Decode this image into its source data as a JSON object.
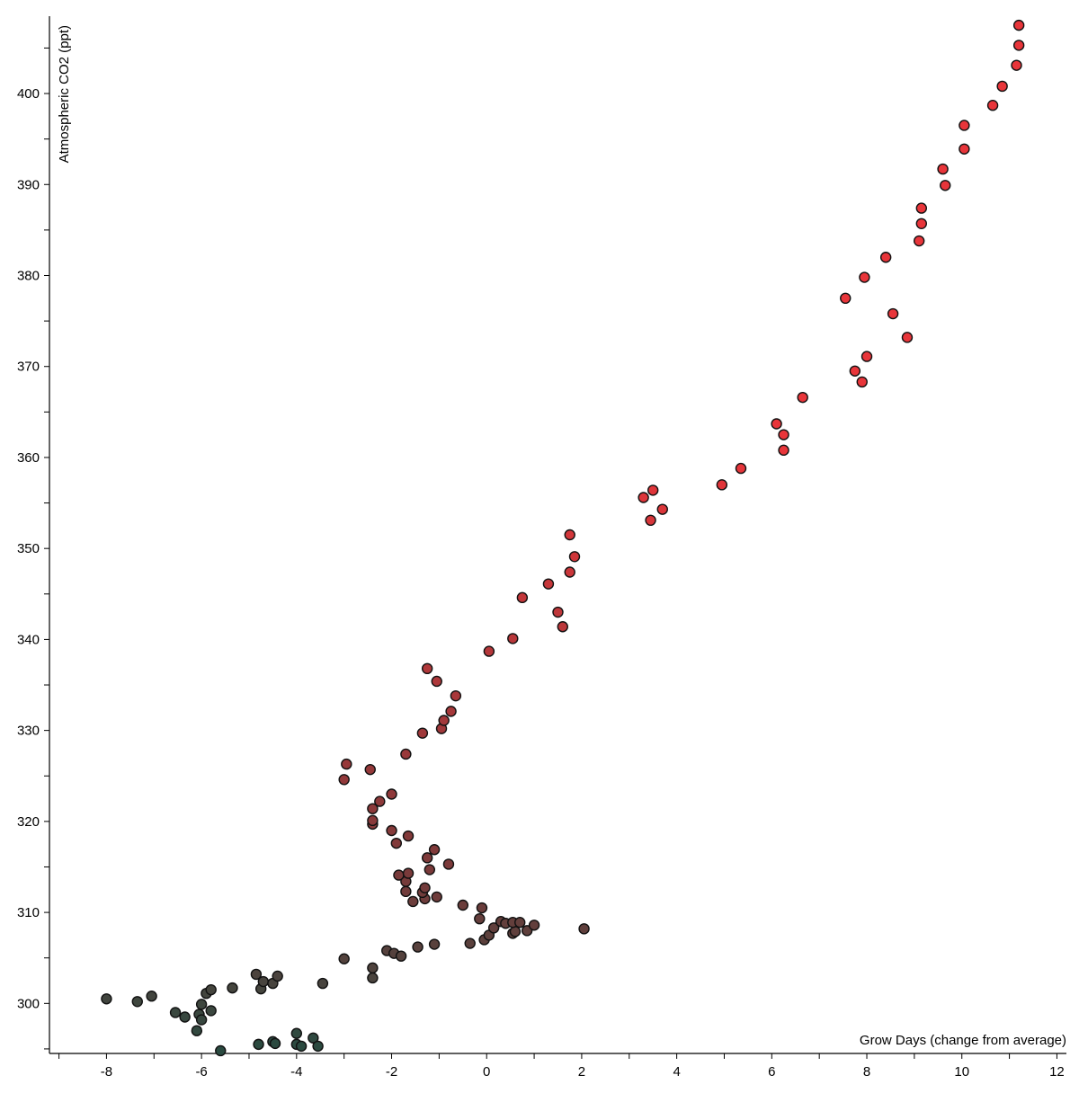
{
  "chart_data": {
    "type": "scatter",
    "xlabel": "Grow Days (change from average)",
    "ylabel": "Atmospheric CO2 (ppt)",
    "xlim": [
      -9.2,
      12.2
    ],
    "ylim": [
      294.5,
      408.5
    ],
    "x_ticks": [
      "-8",
      "-6",
      "-4",
      "-2",
      "0",
      "2",
      "4",
      "6",
      "8",
      "10",
      "12"
    ],
    "y_ticks": [
      "300",
      "310",
      "320",
      "330",
      "340",
      "350",
      "360",
      "370",
      "380",
      "390",
      "400"
    ],
    "grid": false,
    "color_scale": {
      "low": "#2a4a40",
      "mid": "#7a3a3a",
      "high": "#e8353a"
    },
    "points": [
      [
        -8.0,
        300.5
      ],
      [
        -7.35,
        300.2
      ],
      [
        -7.05,
        300.8
      ],
      [
        -6.55,
        299.0
      ],
      [
        -6.35,
        298.5
      ],
      [
        -6.1,
        297.0
      ],
      [
        -6.05,
        298.8
      ],
      [
        -6.0,
        299.9
      ],
      [
        -6.0,
        298.2
      ],
      [
        -5.9,
        301.1
      ],
      [
        -5.8,
        301.5
      ],
      [
        -5.8,
        299.2
      ],
      [
        -5.6,
        294.8
      ],
      [
        -5.35,
        301.7
      ],
      [
        -4.85,
        303.2
      ],
      [
        -4.8,
        295.5
      ],
      [
        -4.75,
        301.6
      ],
      [
        -4.7,
        302.4
      ],
      [
        -4.5,
        302.2
      ],
      [
        -4.5,
        295.8
      ],
      [
        -4.45,
        295.6
      ],
      [
        -4.4,
        303.0
      ],
      [
        -4.0,
        296.7
      ],
      [
        -4.0,
        295.5
      ],
      [
        -3.9,
        295.3
      ],
      [
        -3.65,
        296.2
      ],
      [
        -3.55,
        295.3
      ],
      [
        -3.45,
        302.2
      ],
      [
        -3.0,
        304.9
      ],
      [
        -2.4,
        302.8
      ],
      [
        -2.4,
        303.9
      ],
      [
        -2.1,
        305.8
      ],
      [
        -1.95,
        305.5
      ],
      [
        -1.8,
        305.2
      ],
      [
        -1.45,
        306.2
      ],
      [
        -1.1,
        306.5
      ],
      [
        -0.35,
        306.6
      ],
      [
        -0.05,
        307.0
      ],
      [
        0.05,
        307.5
      ],
      [
        0.15,
        308.3
      ],
      [
        0.3,
        309.0
      ],
      [
        0.4,
        308.8
      ],
      [
        0.55,
        307.7
      ],
      [
        0.6,
        307.9
      ],
      [
        0.55,
        308.9
      ],
      [
        0.7,
        308.9
      ],
      [
        0.85,
        308.0
      ],
      [
        1.0,
        308.6
      ],
      [
        2.05,
        308.2
      ],
      [
        -0.5,
        310.8
      ],
      [
        -0.15,
        309.3
      ],
      [
        -0.1,
        310.5
      ],
      [
        -1.05,
        311.7
      ],
      [
        -1.3,
        311.5
      ],
      [
        -1.35,
        312.2
      ],
      [
        -1.55,
        311.2
      ],
      [
        -1.3,
        312.7
      ],
      [
        -1.7,
        312.3
      ],
      [
        -1.7,
        313.4
      ],
      [
        -1.85,
        314.1
      ],
      [
        -1.65,
        314.3
      ],
      [
        -1.2,
        314.7
      ],
      [
        -0.8,
        315.3
      ],
      [
        -1.25,
        316.0
      ],
      [
        -1.1,
        316.9
      ],
      [
        -1.65,
        318.4
      ],
      [
        -1.9,
        317.6
      ],
      [
        -2.0,
        319.0
      ],
      [
        -2.4,
        319.7
      ],
      [
        -2.4,
        320.1
      ],
      [
        -2.4,
        321.4
      ],
      [
        -2.25,
        322.2
      ],
      [
        -2.0,
        323.0
      ],
      [
        -3.0,
        324.6
      ],
      [
        -2.45,
        325.7
      ],
      [
        -2.95,
        326.3
      ],
      [
        -1.7,
        327.4
      ],
      [
        -1.35,
        329.7
      ],
      [
        -0.95,
        330.2
      ],
      [
        -0.9,
        331.1
      ],
      [
        -0.75,
        332.1
      ],
      [
        -0.65,
        333.8
      ],
      [
        -1.05,
        335.4
      ],
      [
        -1.25,
        336.8
      ],
      [
        0.05,
        338.7
      ],
      [
        0.55,
        340.1
      ],
      [
        0.75,
        344.6
      ],
      [
        1.3,
        346.1
      ],
      [
        1.5,
        343.0
      ],
      [
        1.6,
        341.4
      ],
      [
        1.75,
        347.4
      ],
      [
        1.85,
        349.1
      ],
      [
        1.75,
        351.5
      ],
      [
        3.3,
        355.6
      ],
      [
        3.45,
        353.1
      ],
      [
        3.5,
        356.4
      ],
      [
        3.7,
        354.3
      ],
      [
        4.95,
        357.0
      ],
      [
        5.35,
        358.8
      ],
      [
        6.1,
        363.7
      ],
      [
        6.25,
        362.5
      ],
      [
        6.25,
        360.8
      ],
      [
        6.65,
        366.6
      ],
      [
        7.55,
        377.5
      ],
      [
        7.75,
        369.5
      ],
      [
        7.9,
        368.3
      ],
      [
        7.95,
        379.8
      ],
      [
        8.0,
        371.1
      ],
      [
        8.4,
        382.0
      ],
      [
        8.55,
        375.8
      ],
      [
        8.85,
        373.2
      ],
      [
        9.1,
        383.8
      ],
      [
        9.15,
        385.7
      ],
      [
        9.15,
        387.4
      ],
      [
        9.6,
        391.7
      ],
      [
        9.65,
        389.9
      ],
      [
        10.05,
        393.9
      ],
      [
        10.05,
        396.5
      ],
      [
        10.65,
        398.7
      ],
      [
        10.85,
        400.8
      ],
      [
        11.15,
        403.1
      ],
      [
        11.2,
        405.3
      ],
      [
        11.2,
        407.5
      ]
    ]
  }
}
